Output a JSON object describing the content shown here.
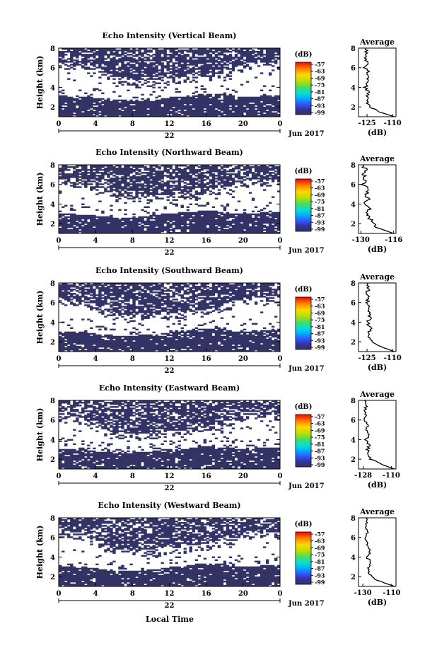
{
  "figure": {
    "bottom_xlabel": "Local Time",
    "day_label": "22",
    "date_label": "Jun 2017"
  },
  "chart_data": [
    {
      "type": "heatmap",
      "title": "Echo Intensity (Vertical Beam)",
      "ylabel": "Height (km)",
      "x_ticks": [
        "0",
        "4",
        "8",
        "12",
        "16",
        "20",
        "0"
      ],
      "xlim": [
        0,
        24
      ],
      "y_ticks": [
        "2",
        "4",
        "6",
        "8"
      ],
      "ylim": [
        1,
        8
      ],
      "colorbar": {
        "label": "(dB)",
        "ticks": [
          "-57",
          "-63",
          "-69",
          "-75",
          "-81",
          "-87",
          "-93",
          "-99"
        ]
      },
      "cloud_top_km": [
        6.2,
        6.2,
        6.1,
        6.0,
        5.6,
        5.2,
        4.8,
        4.6,
        4.5,
        4.5,
        4.5,
        4.6,
        4.7,
        4.8,
        4.9,
        5.0,
        5.1,
        5.2,
        5.5,
        5.9,
        6.2,
        6.4,
        6.3,
        6.2
      ],
      "dense_top_km": [
        3.2,
        3.1,
        3.1,
        3.0,
        2.9,
        2.8,
        2.7,
        2.6,
        2.6,
        2.7,
        2.8,
        2.9,
        3.0,
        3.1,
        3.2,
        3.3,
        3.3,
        3.3,
        3.2,
        3.1,
        3.0,
        3.1,
        3.2,
        3.2
      ],
      "average_profile": {
        "title": "Average",
        "xlabel": "(dB)",
        "x_ticks": [
          "-125",
          "-110"
        ],
        "xlim": [
          -130,
          -108
        ],
        "y_ticks": [
          "2",
          "4",
          "6",
          "8"
        ],
        "ylim": [
          1,
          8
        ],
        "heights": [
          1.0,
          1.5,
          2.0,
          2.5,
          3.0,
          3.5,
          4.0,
          4.5,
          5.0,
          5.5,
          6.0,
          6.5,
          7.0,
          7.5,
          8.0
        ],
        "values": [
          -109,
          -118,
          -123,
          -125,
          -125,
          -124,
          -126,
          -124,
          -125,
          -124,
          -126,
          -125,
          -126,
          -125,
          -126
        ]
      }
    },
    {
      "type": "heatmap",
      "title": "Echo Intensity (Northward Beam)",
      "ylabel": "Height (km)",
      "x_ticks": [
        "0",
        "4",
        "8",
        "12",
        "16",
        "20",
        "0"
      ],
      "xlim": [
        0,
        24
      ],
      "y_ticks": [
        "2",
        "4",
        "6",
        "8"
      ],
      "ylim": [
        1,
        8
      ],
      "colorbar": {
        "label": "(dB)",
        "ticks": [
          "-57",
          "-63",
          "-69",
          "-75",
          "-81",
          "-87",
          "-93",
          "-99"
        ]
      },
      "cloud_top_km": [
        6.3,
        6.2,
        6.0,
        5.8,
        5.4,
        5.0,
        4.6,
        4.4,
        4.3,
        4.4,
        4.5,
        4.6,
        4.7,
        4.8,
        4.9,
        5.0,
        5.2,
        5.4,
        5.6,
        5.9,
        6.2,
        6.3,
        6.2,
        6.1
      ],
      "dense_top_km": [
        3.0,
        3.0,
        2.9,
        2.9,
        2.8,
        2.7,
        2.6,
        2.6,
        2.7,
        2.8,
        2.9,
        3.0,
        3.1,
        3.2,
        3.2,
        3.3,
        3.3,
        3.2,
        3.1,
        3.1,
        3.0,
        3.1,
        3.2,
        3.2
      ],
      "average_profile": {
        "title": "Average",
        "xlabel": "(dB)",
        "x_ticks": [
          "-130",
          "-116"
        ],
        "xlim": [
          -131,
          -115
        ],
        "y_ticks": [
          "2",
          "4",
          "6",
          "8"
        ],
        "ylim": [
          1,
          8
        ],
        "heights": [
          1.0,
          1.5,
          2.0,
          2.5,
          3.0,
          3.5,
          4.0,
          4.5,
          5.0,
          5.5,
          6.0,
          6.5,
          7.0,
          7.5,
          8.0
        ],
        "values": [
          -116,
          -122,
          -125,
          -126,
          -127,
          -126,
          -128,
          -127,
          -128,
          -127,
          -129,
          -128,
          -129,
          -128,
          -129
        ]
      }
    },
    {
      "type": "heatmap",
      "title": "Echo Intensity (Southward Beam)",
      "ylabel": "Height (km)",
      "x_ticks": [
        "0",
        "4",
        "8",
        "12",
        "16",
        "20",
        "0"
      ],
      "xlim": [
        0,
        24
      ],
      "y_ticks": [
        "2",
        "4",
        "6",
        "8"
      ],
      "ylim": [
        1,
        8
      ],
      "colorbar": {
        "label": "(dB)",
        "ticks": [
          "-57",
          "-63",
          "-69",
          "-75",
          "-81",
          "-87",
          "-93",
          "-99"
        ]
      },
      "cloud_top_km": [
        6.2,
        6.1,
        6.0,
        5.7,
        5.3,
        4.9,
        4.6,
        4.5,
        4.4,
        4.4,
        4.5,
        4.6,
        4.7,
        4.8,
        5.0,
        5.1,
        5.2,
        5.4,
        5.7,
        6.0,
        6.2,
        6.3,
        6.3,
        6.2
      ],
      "dense_top_km": [
        3.1,
        3.0,
        3.0,
        2.9,
        2.8,
        2.7,
        2.6,
        2.6,
        2.6,
        2.7,
        2.8,
        2.9,
        3.0,
        3.1,
        3.2,
        3.3,
        3.3,
        3.3,
        3.2,
        3.1,
        3.1,
        3.2,
        3.2,
        3.3
      ],
      "average_profile": {
        "title": "Average",
        "xlabel": "(dB)",
        "x_ticks": [
          "-125",
          "-110"
        ],
        "xlim": [
          -130,
          -108
        ],
        "y_ticks": [
          "2",
          "4",
          "6",
          "8"
        ],
        "ylim": [
          1,
          8
        ],
        "heights": [
          1.0,
          1.5,
          2.0,
          2.5,
          3.0,
          3.5,
          4.0,
          4.5,
          5.0,
          5.5,
          6.0,
          6.5,
          7.0,
          7.5,
          8.0
        ],
        "values": [
          -109,
          -117,
          -122,
          -124,
          -124,
          -123,
          -125,
          -123,
          -124,
          -123,
          -125,
          -124,
          -125,
          -124,
          -125
        ]
      }
    },
    {
      "type": "heatmap",
      "title": "Echo Intensity (Eastward Beam)",
      "ylabel": "Height (km)",
      "x_ticks": [
        "0",
        "4",
        "8",
        "12",
        "16",
        "20",
        "0"
      ],
      "xlim": [
        0,
        24
      ],
      "y_ticks": [
        "2",
        "4",
        "6",
        "8"
      ],
      "ylim": [
        1,
        8
      ],
      "colorbar": {
        "label": "(dB)",
        "ticks": [
          "-57",
          "-63",
          "-69",
          "-75",
          "-81",
          "-87",
          "-93",
          "-99"
        ]
      },
      "cloud_top_km": [
        6.2,
        6.1,
        5.9,
        5.6,
        5.2,
        4.8,
        4.5,
        4.4,
        4.4,
        4.4,
        4.5,
        4.6,
        4.7,
        4.8,
        4.9,
        5.0,
        5.2,
        5.4,
        5.7,
        6.0,
        6.2,
        6.3,
        6.2,
        6.1
      ],
      "dense_top_km": [
        3.1,
        3.0,
        3.0,
        2.9,
        2.8,
        2.7,
        2.6,
        2.6,
        2.7,
        2.8,
        2.9,
        3.0,
        3.0,
        3.1,
        3.2,
        3.3,
        3.3,
        3.2,
        3.2,
        3.1,
        3.0,
        3.1,
        3.2,
        3.2
      ],
      "average_profile": {
        "title": "Average",
        "xlabel": "(dB)",
        "x_ticks": [
          "-128",
          "-110"
        ],
        "xlim": [
          -131,
          -107
        ],
        "y_ticks": [
          "2",
          "4",
          "6",
          "8"
        ],
        "ylim": [
          1,
          8
        ],
        "heights": [
          1.0,
          1.5,
          2.0,
          2.5,
          3.0,
          3.5,
          4.0,
          4.5,
          5.0,
          5.5,
          6.0,
          6.5,
          7.0,
          7.5,
          8.0
        ],
        "values": [
          -108,
          -117,
          -123,
          -125,
          -125,
          -124,
          -126,
          -124,
          -126,
          -125,
          -127,
          -126,
          -127,
          -126,
          -127
        ]
      }
    },
    {
      "type": "heatmap",
      "title": "Echo Intensity (Westward Beam)",
      "ylabel": "Height (km)",
      "x_ticks": [
        "0",
        "4",
        "8",
        "12",
        "16",
        "20",
        "0"
      ],
      "xlim": [
        0,
        24
      ],
      "y_ticks": [
        "2",
        "4",
        "6",
        "8"
      ],
      "ylim": [
        1,
        8
      ],
      "colorbar": {
        "label": "(dB)",
        "ticks": [
          "-57",
          "-63",
          "-69",
          "-75",
          "-81",
          "-87",
          "-93",
          "-99"
        ]
      },
      "cloud_top_km": [
        6.3,
        6.2,
        6.0,
        5.7,
        5.3,
        4.9,
        4.6,
        4.5,
        4.4,
        4.5,
        4.5,
        4.6,
        4.7,
        4.8,
        4.9,
        5.1,
        5.2,
        5.4,
        5.7,
        6.0,
        6.2,
        6.3,
        6.3,
        6.2
      ],
      "dense_top_km": [
        3.0,
        3.0,
        2.9,
        2.9,
        2.8,
        2.7,
        2.6,
        2.6,
        2.6,
        2.7,
        2.8,
        2.9,
        3.0,
        3.1,
        3.2,
        3.3,
        3.3,
        3.3,
        3.2,
        3.1,
        3.0,
        3.1,
        3.2,
        3.2
      ],
      "average_profile": {
        "title": "Average",
        "xlabel": "(dB)",
        "x_ticks": [
          "-130",
          "-110"
        ],
        "xlim": [
          -133,
          -107
        ],
        "y_ticks": [
          "2",
          "4",
          "6",
          "8"
        ],
        "ylim": [
          1,
          8
        ],
        "heights": [
          1.0,
          1.5,
          2.0,
          2.5,
          3.0,
          3.5,
          4.0,
          4.5,
          5.0,
          5.5,
          6.0,
          6.5,
          7.0,
          7.5,
          8.0
        ],
        "values": [
          -108,
          -118,
          -124,
          -126,
          -126,
          -125,
          -127,
          -125,
          -127,
          -126,
          -128,
          -127,
          -128,
          -127,
          -128
        ]
      }
    }
  ],
  "colors": {
    "echo": "#333366",
    "colorbar_stops": [
      "#ff0000",
      "#ff7f00",
      "#ffd700",
      "#b8e000",
      "#44dd66",
      "#00dddd",
      "#00aaff",
      "#3355ff",
      "#333399",
      "#333366"
    ]
  }
}
